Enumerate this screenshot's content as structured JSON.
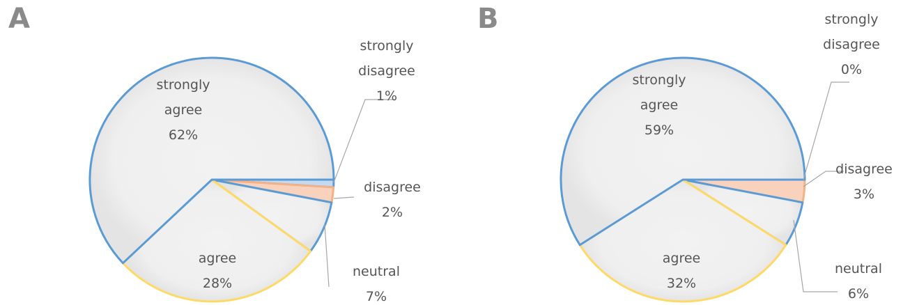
{
  "chart_data": [
    {
      "type": "pie",
      "panel_label": "A",
      "slices": [
        {
          "name": "strongly agree",
          "value": 62,
          "label_lines": [
            "strongly",
            "agree",
            "62%"
          ]
        },
        {
          "name": "strongly disagree",
          "value": 1,
          "label_lines": [
            "strongly",
            "disagree",
            "1%"
          ]
        },
        {
          "name": "disagree",
          "value": 2,
          "label_lines": [
            "disagree",
            "2%"
          ]
        },
        {
          "name": "neutral",
          "value": 7,
          "label_lines": [
            "neutral",
            "7%"
          ]
        },
        {
          "name": "agree",
          "value": 28,
          "label_lines": [
            "agree",
            "28%"
          ]
        }
      ]
    },
    {
      "type": "pie",
      "panel_label": "B",
      "slices": [
        {
          "name": "strongly agree",
          "value": 59,
          "label_lines": [
            "strongly",
            "agree",
            "59%"
          ]
        },
        {
          "name": "strongly disagree",
          "value": 0,
          "label_lines": [
            "strongly",
            "disagree",
            "0%"
          ]
        },
        {
          "name": "disagree",
          "value": 3,
          "label_lines": [
            "disagree",
            "3%"
          ]
        },
        {
          "name": "neutral",
          "value": 6,
          "label_lines": [
            "neutral",
            "6%"
          ]
        },
        {
          "name": "agree",
          "value": 32,
          "label_lines": [
            "agree",
            "32%"
          ]
        }
      ]
    }
  ],
  "colors": {
    "strongly agree": "#5b9bd5",
    "strongly disagree": "#5b9bd5",
    "disagree": "#f4b183",
    "neutral": "#5b9bd5",
    "agree": "#ffd966"
  }
}
